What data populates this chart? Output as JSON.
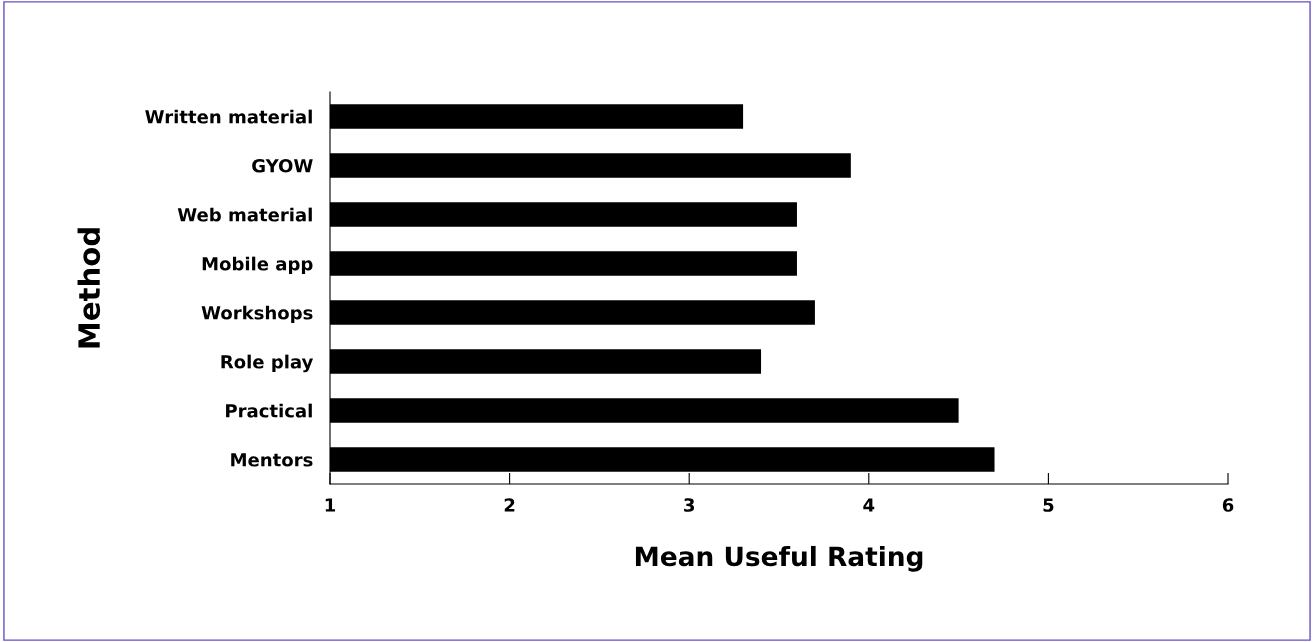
{
  "chart_data": {
    "type": "bar",
    "orientation": "horizontal",
    "xlabel": "Mean Useful Rating",
    "ylabel": "Method",
    "categories": [
      "Written material",
      "GYOW",
      "Web material",
      "Mobile app",
      "Workshops",
      "Role play",
      "Practical",
      "Mentors"
    ],
    "values": [
      3.3,
      3.9,
      3.6,
      3.6,
      3.7,
      3.4,
      4.5,
      4.7
    ],
    "color": "#000000",
    "xlim": [
      1,
      6
    ],
    "xticks": [
      1,
      2,
      3,
      4,
      5,
      6
    ],
    "grid": false
  }
}
